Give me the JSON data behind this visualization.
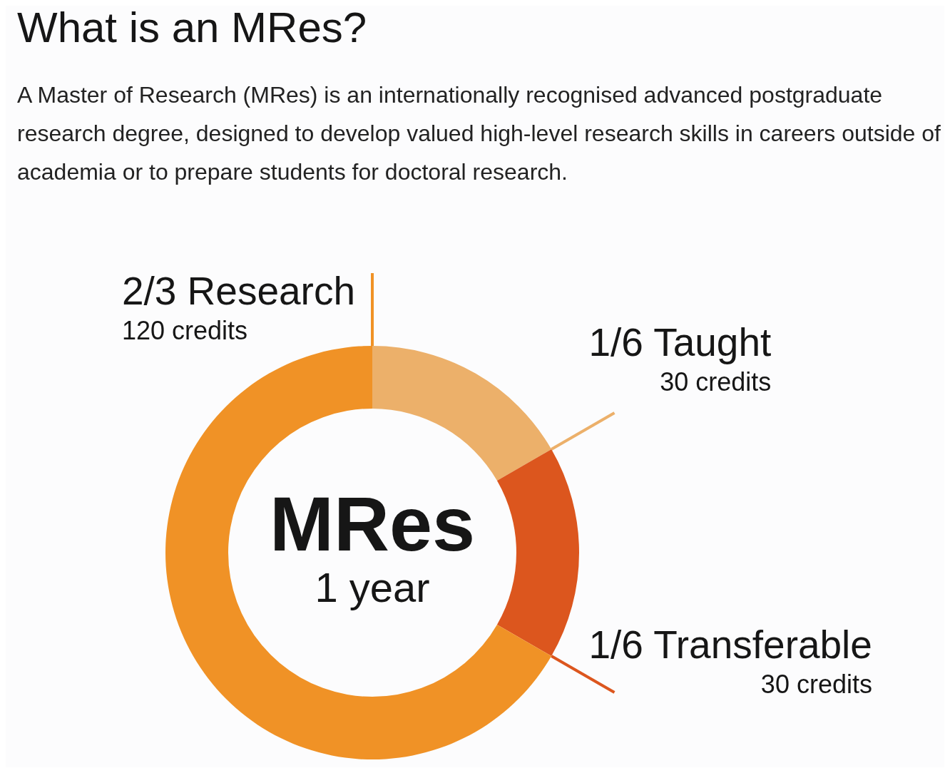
{
  "chart_data": {
    "type": "donut",
    "title": "What is an MRes?",
    "subtitle": "A Master of Research (MRes) is an internationally recognised advanced postgraduate research degree, designed to develop valued high-level research skills in careers outside of academia or to prepare students for doctoral research.",
    "categories": [
      "1/6 Taught",
      "1/6 Transferable",
      "2/3 Research"
    ],
    "values": [
      30,
      30,
      120
    ],
    "value_labels": [
      "30 credits",
      "30 credits",
      "120 credits"
    ],
    "colors": [
      "#ecb06a",
      "#dc561e",
      "#f09226"
    ],
    "annotations": [
      "MRes",
      "1 year"
    ]
  }
}
